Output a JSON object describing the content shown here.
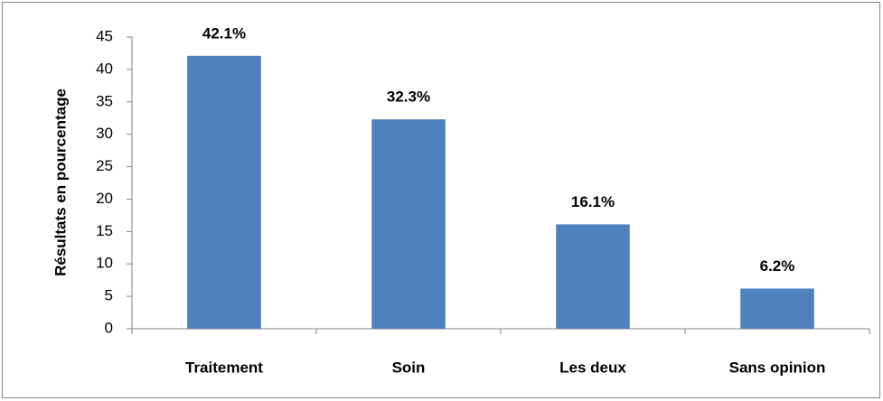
{
  "chart_data": {
    "type": "bar",
    "y_label": "Résultats en pourcentage",
    "categories": [
      "Traitement",
      "Soin",
      "Les deux",
      "Sans opinion"
    ],
    "values": [
      42.1,
      32.3,
      16.1,
      6.2
    ],
    "value_labels": [
      "42.1%",
      "32.3%",
      "16.1%",
      "6.2%"
    ],
    "color": "#4f81bd",
    "ylim": [
      0,
      45
    ],
    "yticks": [
      0,
      5,
      10,
      15,
      20,
      25,
      30,
      35,
      40,
      45
    ],
    "grid": false
  }
}
